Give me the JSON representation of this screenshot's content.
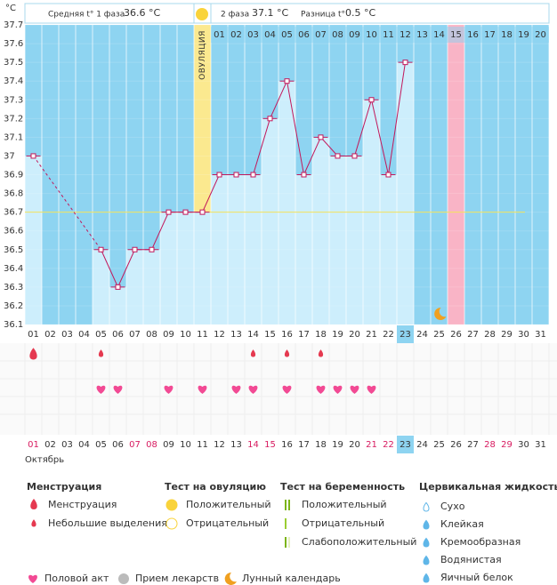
{
  "header": {
    "unit": "°C",
    "phase1_label": "Средняя t° 1 фаза",
    "phase1_value": "36.6 °C",
    "phase2_label": "2 фаза",
    "phase2_value": "37.1 °C",
    "diff_label": "Разница t°",
    "diff_value": "0.5 °C"
  },
  "chart_data": {
    "type": "line",
    "color": "#c2185b",
    "categories": [
      "01",
      "02",
      "03",
      "04",
      "05",
      "06",
      "07",
      "08",
      "09",
      "10",
      "11",
      "12",
      "13",
      "14",
      "15",
      "16",
      "17",
      "18",
      "19",
      "20",
      "21",
      "22",
      "23",
      "24",
      "25",
      "26",
      "27",
      "28",
      "29",
      "30",
      "31"
    ],
    "values": [
      37.0,
      null,
      null,
      null,
      36.5,
      36.3,
      36.5,
      36.5,
      36.7,
      36.7,
      36.7,
      36.9,
      36.9,
      36.9,
      37.2,
      37.4,
      36.9,
      37.1,
      37.0,
      37.0,
      37.3,
      36.9,
      37.5,
      null,
      null,
      null,
      null,
      null,
      null,
      null,
      null
    ],
    "ylim": [
      36.1,
      37.7
    ],
    "yticks": [
      36.1,
      36.2,
      36.3,
      36.4,
      36.5,
      36.6,
      36.7,
      36.8,
      36.9,
      37,
      37.1,
      37.2,
      37.3,
      37.4,
      37.5,
      37.6,
      37.7
    ],
    "cover_line": 36.7,
    "ovulation_label": "ОВУЛЯЦИЯ",
    "ovulation_day": 11,
    "today": 23,
    "period_day": 26,
    "moon_day": 25,
    "cycle_days": [
      null,
      null,
      null,
      null,
      null,
      null,
      null,
      null,
      null,
      null,
      null,
      "01",
      "02",
      "03",
      "04",
      "05",
      "06",
      "07",
      "08",
      "09",
      "10",
      "11",
      "12",
      "13",
      "14",
      "15",
      "16",
      "17",
      "18",
      "19",
      "20"
    ],
    "discharge": [
      "heavy",
      null,
      null,
      null,
      "light",
      null,
      null,
      null,
      null,
      null,
      null,
      null,
      null,
      "light",
      null,
      "light",
      null,
      "light",
      null,
      null,
      null,
      null,
      null,
      null,
      null,
      null,
      null,
      null,
      null,
      null,
      null
    ],
    "intercourse": [
      false,
      false,
      false,
      false,
      true,
      true,
      false,
      false,
      true,
      false,
      true,
      false,
      true,
      true,
      false,
      true,
      false,
      true,
      true,
      true,
      true,
      false,
      false,
      false,
      false,
      false,
      false,
      false,
      false,
      false,
      false
    ],
    "weekend": [
      true,
      false,
      false,
      false,
      false,
      false,
      true,
      true,
      false,
      false,
      false,
      false,
      false,
      true,
      true,
      false,
      false,
      false,
      false,
      false,
      true,
      true,
      false,
      false,
      false,
      false,
      false,
      true,
      true,
      false,
      false
    ],
    "month": "Октябрь"
  },
  "legend": {
    "menstruation": {
      "title": "Менструация",
      "items": [
        "Менструация",
        "Небольшие выделения"
      ]
    },
    "ovulation_test": {
      "title": "Тест на овуляцию",
      "items": [
        "Положительный",
        "Отрицательный"
      ]
    },
    "pregnancy_test": {
      "title": "Тест на беременность",
      "items": [
        "Положительный",
        "Отрицательный",
        "Слабоположительный"
      ]
    },
    "cervical": {
      "title": "Цервикальная жидкость",
      "items": [
        "Сухо",
        "Клейкая",
        "Кремообразная",
        "Водянистая",
        "Яичный белок"
      ]
    },
    "other": [
      "Половой акт",
      "Прием лекарств",
      "Лунный календарь"
    ]
  }
}
